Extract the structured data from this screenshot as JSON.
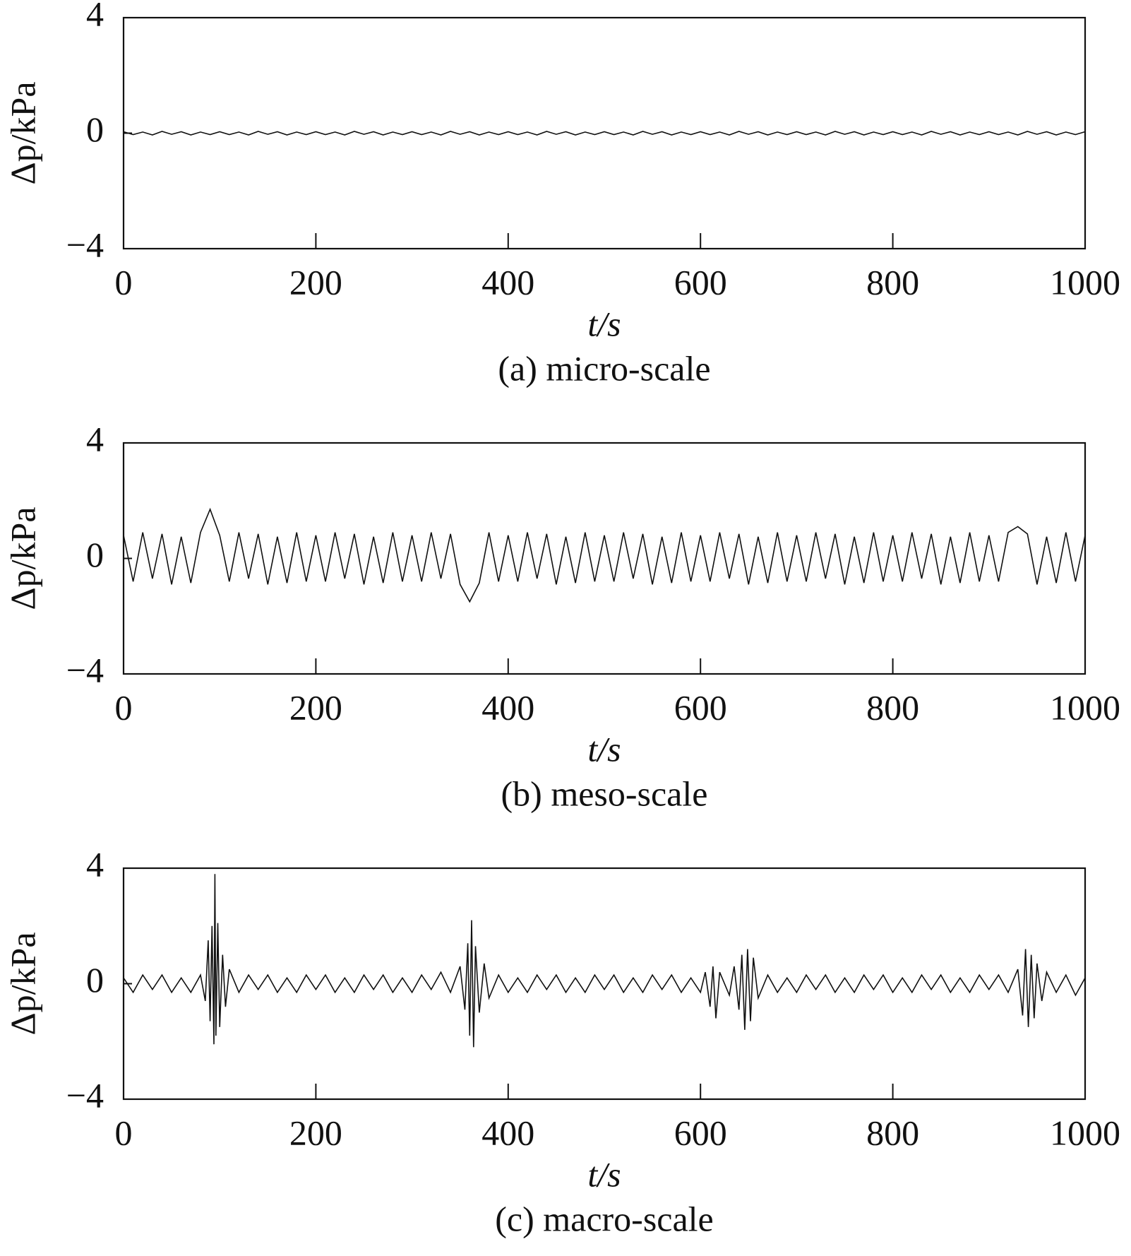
{
  "chart_data": [
    {
      "type": "line",
      "title": "(a) micro-scale",
      "xlabel": "t/s",
      "ylabel": "Δp/kPa",
      "color": "#111111",
      "xlim": [
        0,
        1000
      ],
      "ylim": [
        -4,
        4
      ],
      "xticks": [
        0,
        200,
        400,
        600,
        800,
        1000
      ],
      "yticks": [
        {
          "value": -4,
          "label": "−4"
        },
        0,
        4
      ],
      "x": [
        0,
        10,
        20,
        30,
        40,
        50,
        60,
        70,
        80,
        90,
        100,
        110,
        120,
        130,
        140,
        150,
        160,
        170,
        180,
        190,
        200,
        210,
        220,
        230,
        240,
        250,
        260,
        270,
        280,
        290,
        300,
        310,
        320,
        330,
        340,
        350,
        360,
        370,
        380,
        390,
        400,
        410,
        420,
        430,
        440,
        450,
        460,
        470,
        480,
        490,
        500,
        510,
        520,
        530,
        540,
        550,
        560,
        570,
        580,
        590,
        600,
        610,
        620,
        630,
        640,
        650,
        660,
        670,
        680,
        690,
        700,
        710,
        720,
        730,
        740,
        750,
        760,
        770,
        780,
        790,
        800,
        810,
        820,
        830,
        840,
        850,
        860,
        870,
        880,
        890,
        900,
        910,
        920,
        930,
        940,
        950,
        960,
        970,
        980,
        990,
        1000
      ],
      "values": [
        0.05,
        -0.05,
        0.04,
        -0.06,
        0.06,
        -0.04,
        0.05,
        -0.06,
        0.04,
        -0.05,
        0.05,
        -0.05,
        0.04,
        -0.06,
        0.06,
        -0.04,
        0.05,
        -0.06,
        0.04,
        -0.05,
        0.05,
        -0.05,
        0.04,
        -0.06,
        0.06,
        -0.04,
        0.05,
        -0.06,
        0.04,
        -0.05,
        0.05,
        -0.05,
        0.04,
        -0.06,
        0.06,
        -0.04,
        0.05,
        -0.06,
        0.04,
        -0.05,
        0.05,
        -0.05,
        0.04,
        -0.06,
        0.06,
        -0.04,
        0.05,
        -0.06,
        0.04,
        -0.05,
        0.05,
        -0.05,
        0.04,
        -0.06,
        0.06,
        -0.04,
        0.05,
        -0.06,
        0.04,
        -0.05,
        0.05,
        -0.05,
        0.04,
        -0.06,
        0.06,
        -0.04,
        0.05,
        -0.06,
        0.04,
        -0.05,
        0.05,
        -0.05,
        0.04,
        -0.06,
        0.06,
        -0.04,
        0.05,
        -0.06,
        0.04,
        -0.05,
        0.05,
        -0.05,
        0.04,
        -0.06,
        0.06,
        -0.04,
        0.05,
        -0.06,
        0.04,
        -0.05,
        0.05,
        -0.05,
        0.04,
        -0.06,
        0.06,
        -0.04,
        0.05,
        -0.06,
        0.04,
        -0.05,
        0.05
      ]
    },
    {
      "type": "line",
      "title": "(b) meso-scale",
      "xlabel": "t/s",
      "ylabel": "Δp/kPa",
      "color": "#111111",
      "xlim": [
        0,
        1000
      ],
      "ylim": [
        -4,
        4
      ],
      "xticks": [
        0,
        200,
        400,
        600,
        800,
        1000
      ],
      "yticks": [
        {
          "value": -4,
          "label": "−4"
        },
        0,
        4
      ],
      "x": [
        0,
        10,
        20,
        30,
        40,
        50,
        60,
        70,
        80,
        90,
        100,
        110,
        120,
        130,
        140,
        150,
        160,
        170,
        180,
        190,
        200,
        210,
        220,
        230,
        240,
        250,
        260,
        270,
        280,
        290,
        300,
        310,
        320,
        330,
        340,
        350,
        360,
        370,
        380,
        390,
        400,
        410,
        420,
        430,
        440,
        450,
        460,
        470,
        480,
        490,
        500,
        510,
        520,
        530,
        540,
        550,
        560,
        570,
        580,
        590,
        600,
        610,
        620,
        630,
        640,
        650,
        660,
        670,
        680,
        690,
        700,
        710,
        720,
        730,
        740,
        750,
        760,
        770,
        780,
        790,
        800,
        810,
        820,
        830,
        840,
        850,
        860,
        870,
        880,
        890,
        900,
        910,
        920,
        930,
        940,
        950,
        960,
        970,
        980,
        990,
        1000
      ],
      "values": [
        0.8,
        -0.8,
        0.9,
        -0.7,
        0.85,
        -0.9,
        0.75,
        -0.85,
        0.9,
        1.7,
        0.8,
        -0.8,
        0.9,
        -0.7,
        0.85,
        -0.9,
        0.75,
        -0.85,
        0.9,
        -0.8,
        0.8,
        -0.8,
        0.9,
        -0.7,
        0.85,
        -0.9,
        0.75,
        -0.85,
        0.9,
        -0.8,
        0.8,
        -0.8,
        0.9,
        -0.7,
        0.85,
        -0.9,
        -1.5,
        -0.85,
        0.9,
        -0.8,
        0.8,
        -0.8,
        0.9,
        -0.7,
        0.85,
        -0.9,
        0.75,
        -0.85,
        0.9,
        -0.8,
        0.8,
        -0.8,
        0.9,
        -0.7,
        0.85,
        -0.9,
        0.75,
        -0.85,
        0.9,
        -0.8,
        0.8,
        -0.8,
        0.9,
        -0.7,
        0.85,
        -0.9,
        0.75,
        -0.85,
        0.9,
        -0.8,
        0.8,
        -0.8,
        0.9,
        -0.7,
        0.85,
        -0.9,
        0.75,
        -0.85,
        0.9,
        -0.8,
        0.8,
        -0.8,
        0.9,
        -0.7,
        0.85,
        -0.9,
        0.75,
        -0.85,
        0.9,
        -0.8,
        0.8,
        -0.8,
        0.9,
        1.1,
        0.85,
        -0.9,
        0.75,
        -0.85,
        0.9,
        -0.8,
        0.8
      ]
    },
    {
      "type": "line",
      "title": "(c) macro-scale",
      "xlabel": "t/s",
      "ylabel": "Δp/kPa",
      "color": "#111111",
      "xlim": [
        0,
        1000
      ],
      "ylim": [
        -4,
        4
      ],
      "xticks": [
        0,
        200,
        400,
        600,
        800,
        1000
      ],
      "yticks": [
        {
          "value": -4,
          "label": "−4"
        },
        0,
        4
      ],
      "x": [
        0,
        10,
        20,
        30,
        40,
        50,
        60,
        70,
        80,
        85,
        88,
        90,
        92,
        94,
        95,
        96,
        98,
        100,
        103,
        106,
        110,
        120,
        130,
        140,
        150,
        160,
        170,
        180,
        190,
        200,
        210,
        220,
        230,
        240,
        250,
        260,
        270,
        280,
        290,
        300,
        310,
        320,
        330,
        340,
        350,
        355,
        358,
        360,
        362,
        364,
        366,
        370,
        375,
        380,
        390,
        400,
        410,
        420,
        430,
        440,
        450,
        460,
        470,
        480,
        490,
        500,
        510,
        520,
        530,
        540,
        550,
        560,
        570,
        580,
        590,
        600,
        605,
        610,
        613,
        616,
        620,
        630,
        635,
        640,
        643,
        646,
        649,
        652,
        655,
        660,
        670,
        680,
        690,
        700,
        710,
        720,
        730,
        740,
        750,
        760,
        770,
        780,
        790,
        800,
        810,
        820,
        830,
        840,
        850,
        860,
        870,
        880,
        890,
        900,
        910,
        920,
        930,
        935,
        938,
        941,
        944,
        947,
        950,
        955,
        960,
        970,
        980,
        990,
        1000
      ],
      "values": [
        0.2,
        -0.3,
        0.3,
        -0.2,
        0.3,
        -0.3,
        0.2,
        -0.3,
        0.3,
        -0.6,
        1.5,
        -1.3,
        2.0,
        -2.1,
        3.8,
        -1.8,
        2.1,
        -1.5,
        1.0,
        -0.8,
        0.5,
        -0.3,
        0.3,
        -0.2,
        0.3,
        -0.3,
        0.2,
        -0.3,
        0.3,
        -0.2,
        0.3,
        -0.3,
        0.2,
        -0.3,
        0.3,
        -0.2,
        0.3,
        -0.3,
        0.2,
        -0.3,
        0.3,
        -0.2,
        0.4,
        -0.3,
        0.6,
        -0.9,
        1.4,
        -1.8,
        2.2,
        -2.2,
        1.3,
        -1.0,
        0.7,
        -0.5,
        0.3,
        -0.3,
        0.2,
        -0.3,
        0.3,
        -0.2,
        0.3,
        -0.3,
        0.2,
        -0.3,
        0.3,
        -0.2,
        0.3,
        -0.3,
        0.2,
        -0.3,
        0.3,
        -0.2,
        0.3,
        -0.3,
        0.2,
        -0.3,
        0.4,
        -0.8,
        0.6,
        -1.2,
        0.4,
        -0.4,
        0.6,
        -0.9,
        1.0,
        -1.6,
        1.2,
        -1.3,
        0.9,
        -0.5,
        0.3,
        -0.3,
        0.2,
        -0.3,
        0.3,
        -0.2,
        0.3,
        -0.3,
        0.2,
        -0.3,
        0.3,
        -0.2,
        0.3,
        -0.3,
        0.2,
        -0.3,
        0.3,
        -0.2,
        0.3,
        -0.3,
        0.2,
        -0.3,
        0.3,
        -0.2,
        0.3,
        -0.3,
        0.5,
        -1.1,
        1.2,
        -1.5,
        1.0,
        -1.2,
        0.7,
        -0.6,
        0.4,
        -0.3,
        0.3,
        -0.4,
        0.2
      ]
    }
  ]
}
